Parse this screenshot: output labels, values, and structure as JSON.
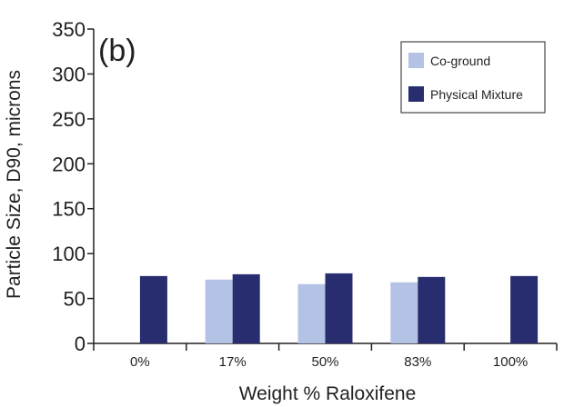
{
  "chart_data": {
    "type": "bar",
    "panel_label": "(b)",
    "categories": [
      "0%",
      "17%",
      "50%",
      "83%",
      "100%"
    ],
    "series": [
      {
        "name": "Co-ground",
        "color": "#b3c2e5",
        "values": [
          null,
          71,
          66,
          68,
          null
        ]
      },
      {
        "name": "Physical Mixture",
        "color": "#272d6e",
        "values": [
          75,
          77,
          78,
          74,
          75
        ]
      }
    ],
    "xlabel": "Weight % Raloxifene",
    "ylabel": "Particle Size, D90, microns",
    "ylim": [
      0,
      350
    ],
    "yticks": [
      0,
      50,
      100,
      150,
      200,
      250,
      300,
      350
    ],
    "grid": false,
    "legend_position": "top-right"
  }
}
